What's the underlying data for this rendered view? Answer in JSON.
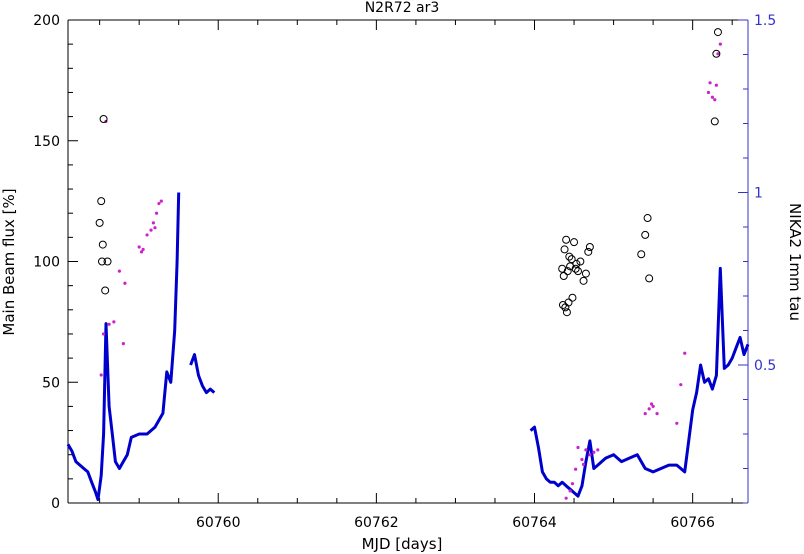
{
  "chart_data": {
    "type": "scatter",
    "title": "N2R72 ar3",
    "xlabel": "MJD [days]",
    "ylabel_left": "Main Beam flux [%]",
    "ylabel_right": "NIKA2 1mm tau",
    "xlim": [
      60758.1,
      60766.7
    ],
    "ylim_left": [
      0,
      200
    ],
    "ylim_right": [
      0.1,
      1.5
    ],
    "x_ticks": [
      60760,
      60762,
      60764,
      60766
    ],
    "y_ticks_left": [
      0,
      50,
      100,
      150,
      200
    ],
    "y_ticks_right": [
      0.5,
      1,
      1.5
    ],
    "grid": false,
    "colors": {
      "flux_markers": "#000000",
      "secondary_points": "#cc22cc",
      "tau_line": "#0000cc",
      "right_axis": "#3333cc"
    },
    "series": [
      {
        "role": "flux_markers",
        "x": [
          60758.5,
          60758.52,
          60758.53,
          60758.54,
          60758.55,
          60758.57,
          60758.6,
          60764.35,
          60764.37,
          60764.38,
          60764.4,
          60764.42,
          60764.44,
          60764.45,
          60764.47,
          60764.5,
          60764.52,
          60764.55,
          60764.58,
          60764.62,
          60764.65,
          60764.68,
          60764.7,
          60764.36,
          60764.39,
          60764.41,
          60764.43,
          60764.48,
          60764.53,
          60765.35,
          60765.4,
          60765.43,
          60765.45,
          60766.28,
          60766.3,
          60766.32
        ],
        "y": [
          116,
          125,
          100,
          107,
          159,
          88,
          100,
          97,
          94,
          105,
          109,
          96,
          102,
          98,
          101,
          108,
          97,
          96,
          100,
          92,
          95,
          104,
          106,
          82,
          81,
          79,
          83,
          85,
          99,
          103,
          111,
          118,
          93,
          158,
          186,
          195
        ]
      },
      {
        "role": "secondary_points",
        "x": [
          60758.52,
          60758.55,
          60758.58,
          60758.62,
          60758.68,
          60758.75,
          60758.8,
          60758.82,
          60759.0,
          60759.03,
          60759.05,
          60759.1,
          60759.15,
          60759.18,
          60759.2,
          60759.22,
          60759.25,
          60759.28,
          60764.4,
          60764.45,
          60764.48,
          60764.52,
          60764.55,
          60764.6,
          60764.62,
          60764.65,
          60764.7,
          60764.75,
          60764.8,
          60765.4,
          60765.45,
          60765.48,
          60765.5,
          60765.55,
          60765.8,
          60765.85,
          60765.9,
          60766.2,
          60766.22,
          60766.25,
          60766.28,
          60766.3,
          60766.32,
          60766.35
        ],
        "y": [
          53,
          70,
          158,
          74,
          75,
          96,
          66,
          91,
          106,
          104,
          105,
          111,
          113,
          116,
          114,
          120,
          124,
          125,
          2,
          5,
          8,
          14,
          23,
          18,
          16,
          22,
          20,
          21,
          22,
          37,
          39,
          41,
          40,
          37,
          33,
          49,
          62,
          170,
          174,
          168,
          167,
          173,
          186,
          190
        ]
      },
      {
        "role": "tau_line",
        "segments": [
          {
            "x": [
              60758.1,
              60758.15,
              60758.2,
              60758.25,
              60758.3,
              60758.35,
              60758.4,
              60758.45,
              60758.48,
              60758.52,
              60758.55,
              60758.58,
              60758.62,
              60758.66,
              60758.7,
              60758.75,
              60758.8,
              60758.85,
              60758.9,
              60759.0,
              60759.1,
              60759.2,
              60759.3,
              60759.35,
              60759.4,
              60759.45,
              60759.48,
              60759.5
            ],
            "y": [
              0.27,
              0.25,
              0.22,
              0.21,
              0.2,
              0.19,
              0.16,
              0.13,
              0.11,
              0.18,
              0.3,
              0.62,
              0.38,
              0.3,
              0.22,
              0.2,
              0.22,
              0.24,
              0.29,
              0.3,
              0.3,
              0.32,
              0.36,
              0.48,
              0.45,
              0.6,
              0.8,
              1.0
            ]
          },
          {
            "x": [
              60759.65,
              60759.7,
              60759.75,
              60759.8,
              60759.85,
              60759.9,
              60759.95
            ],
            "y": [
              0.5,
              0.53,
              0.47,
              0.44,
              0.42,
              0.43,
              0.42
            ]
          },
          {
            "x": [
              60763.95,
              60764.0,
              60764.05,
              60764.1,
              60764.15,
              60764.2,
              60764.25,
              60764.3,
              60764.35,
              60764.4,
              60764.45,
              60764.5,
              60764.55,
              60764.6,
              60764.65,
              60764.7,
              60764.75,
              60764.8,
              60764.85,
              60764.9,
              60765.0,
              60765.1,
              60765.2,
              60765.3,
              60765.4,
              60765.5,
              60765.6,
              60765.7,
              60765.8,
              60765.9,
              60766.0,
              60766.05,
              60766.1,
              60766.15,
              60766.2,
              60766.25,
              60766.3,
              60766.35,
              60766.4,
              60766.45,
              60766.5,
              60766.55,
              60766.6,
              60766.65,
              60766.7
            ],
            "y": [
              0.31,
              0.32,
              0.26,
              0.19,
              0.17,
              0.16,
              0.16,
              0.15,
              0.16,
              0.15,
              0.14,
              0.13,
              0.12,
              0.15,
              0.22,
              0.28,
              0.2,
              0.21,
              0.22,
              0.23,
              0.24,
              0.22,
              0.23,
              0.24,
              0.2,
              0.19,
              0.2,
              0.21,
              0.21,
              0.19,
              0.37,
              0.42,
              0.5,
              0.45,
              0.46,
              0.43,
              0.47,
              0.78,
              0.49,
              0.5,
              0.52,
              0.55,
              0.58,
              0.53,
              0.56
            ]
          }
        ]
      }
    ]
  }
}
